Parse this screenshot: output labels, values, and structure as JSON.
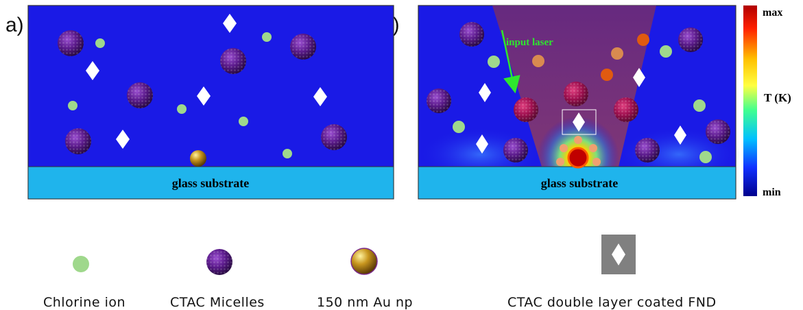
{
  "panels": {
    "a": {
      "label": "a)",
      "substrate_label": "glass substrate"
    },
    "b": {
      "label": "b)",
      "substrate_label": "glass substrate",
      "laser_label": "input laser"
    }
  },
  "colorbar": {
    "max_label": "max",
    "min_label": "min",
    "axis_label": "T (K)"
  },
  "legend": [
    {
      "icon": "chlorine-ion-icon",
      "label": "Chlorine ion"
    },
    {
      "icon": "ctac-micelle-icon",
      "label": "CTAC Micelles"
    },
    {
      "icon": "gold-nanoparticle-icon",
      "label": "150 nm Au np"
    },
    {
      "icon": "fnd-icon",
      "label": "CTAC double layer coated FND"
    }
  ],
  "colors": {
    "water": "#1a1ae6",
    "substrate": "#1fb4ec",
    "chlorine": "#9fd88c",
    "micelle": "#5a1a8a",
    "gold": "#b88a1a",
    "laser_arrow": "#2ee62e"
  }
}
